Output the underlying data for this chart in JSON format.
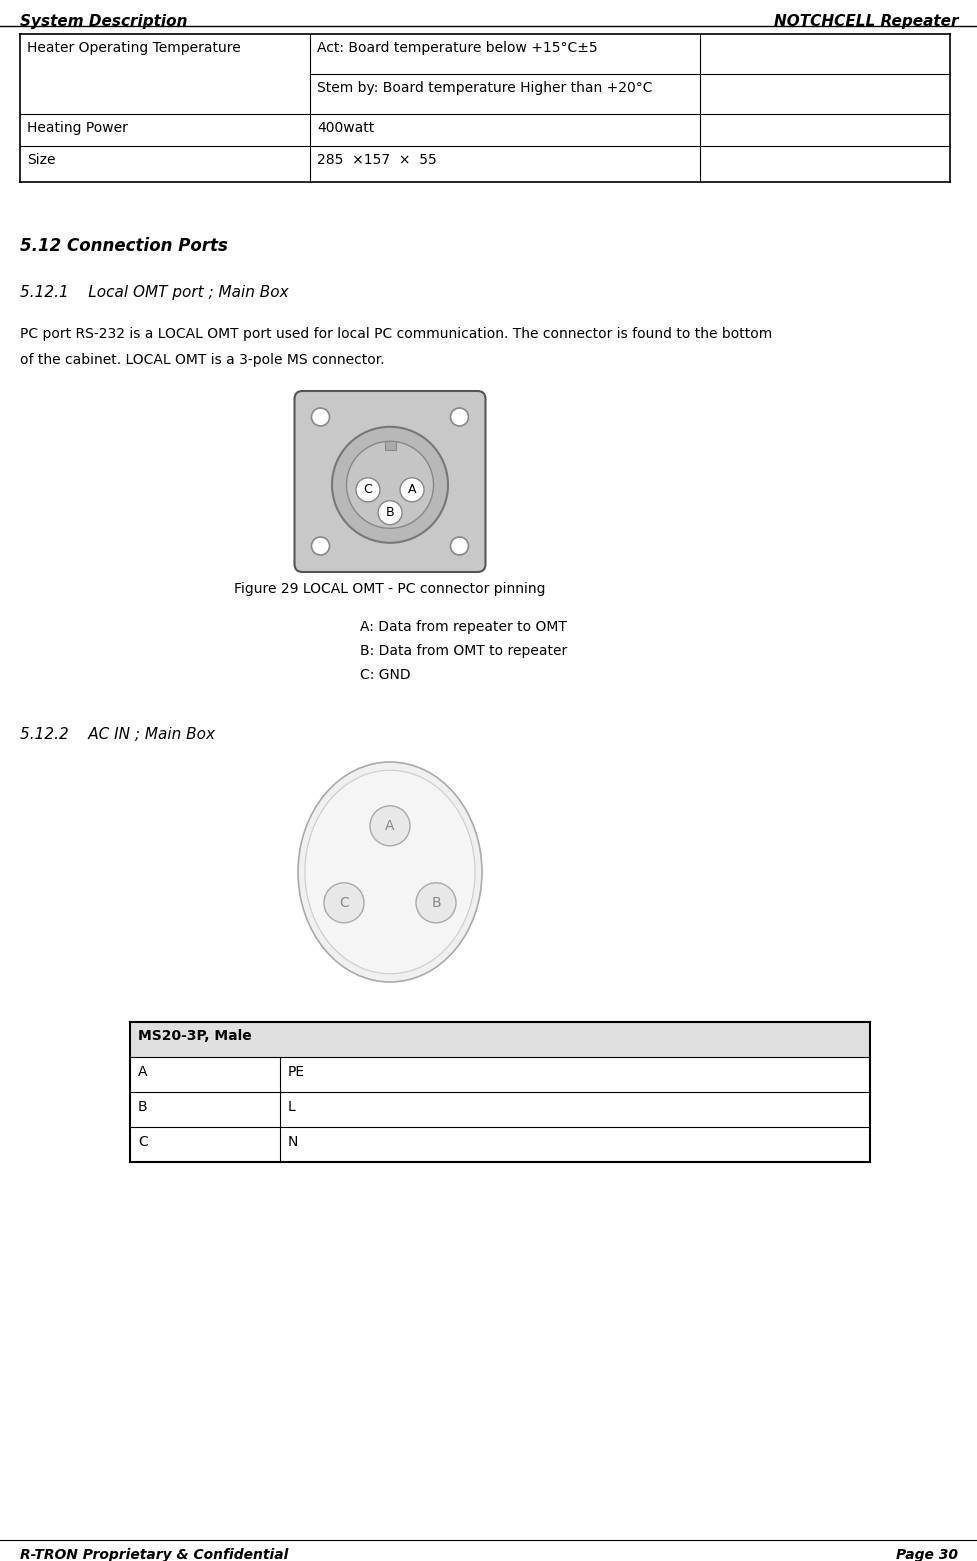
{
  "header_left": "System Description",
  "header_right": "NOTCHCELL Repeater",
  "footer_left": "R-TRON Proprietary & Confidential",
  "footer_right": "Page 30",
  "table1_rows": [
    [
      "Heater Operating Temperature",
      "Act: Board temperature below +15°C±5",
      ""
    ],
    [
      "",
      "Stem by: Board temperature Higher than +20°C",
      ""
    ],
    [
      "Heating Power",
      "400watt",
      ""
    ],
    [
      "Size",
      "285  ×157  ×  55",
      ""
    ]
  ],
  "section_512": "5.12 Connection Ports",
  "section_5121": "5.12.1    Local OMT port ; Main Box",
  "para_5121_line1": "PC port RS-232 is a LOCAL OMT port used for local PC communication. The connector is found to the bottom",
  "para_5121_line2": "of the cabinet. LOCAL OMT is a 3-pole MS connector.",
  "fig29_caption": "Figure 29 LOCAL OMT - PC connector pinning",
  "pin_labels_omt": [
    "A: Data from repeater to OMT",
    "B: Data from OMT to repeater",
    "C: GND"
  ],
  "section_5122": "5.12.2    AC IN ; Main Box",
  "table2_header": "MS20-3P, Male",
  "table2_rows": [
    [
      "A",
      "PE"
    ],
    [
      "B",
      "L"
    ],
    [
      "C",
      "N"
    ]
  ],
  "bg_color": "#ffffff",
  "table_header_bg": "#e0e0e0",
  "text_color": "#000000",
  "connector_body_color": "#c8c8c8",
  "connector_edge_color": "#555555",
  "pin_color": "#ffffff",
  "ac_body_color": "#f0f0f0",
  "ac_edge_color": "#aaaaaa",
  "ac_pin_color": "#e8e8e8",
  "ac_pin_edge": "#aaaaaa",
  "ac_pin_text": "#888888"
}
